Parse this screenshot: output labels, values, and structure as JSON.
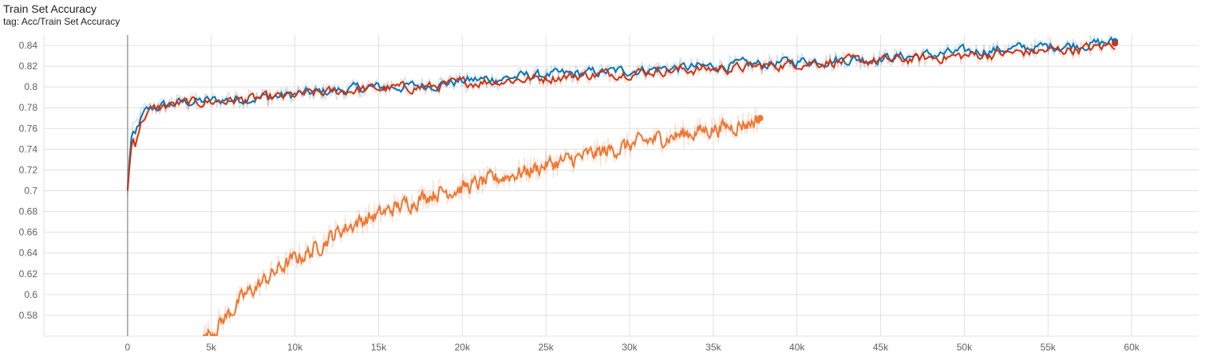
{
  "header": {
    "title": "Train Set Accuracy",
    "tag": "tag: Acc/Train Set Accuracy"
  },
  "colors": {
    "blue": "#0077bb",
    "red": "#cc3311",
    "orange": "#ee7733",
    "grid": "#e0e0e0",
    "axis": "#9e9e9e"
  },
  "chart_data": {
    "type": "line",
    "title": "Train Set Accuracy",
    "xlabel": "",
    "ylabel": "",
    "xlim": [
      -5000,
      64000
    ],
    "ylim": [
      0.56,
      0.85
    ],
    "x_ticks": [
      0,
      5000,
      10000,
      15000,
      20000,
      25000,
      30000,
      35000,
      40000,
      45000,
      50000,
      55000,
      60000
    ],
    "x_tick_labels": [
      "0",
      "5k",
      "10k",
      "15k",
      "20k",
      "25k",
      "30k",
      "35k",
      "40k",
      "45k",
      "50k",
      "55k",
      "60k"
    ],
    "y_ticks": [
      0.58,
      0.6,
      0.62,
      0.64,
      0.66,
      0.68,
      0.7,
      0.72,
      0.74,
      0.76,
      0.78,
      0.8,
      0.82,
      0.84
    ],
    "y_tick_labels": [
      "0.58",
      "0.6",
      "0.62",
      "0.64",
      "0.66",
      "0.68",
      "0.7",
      "0.72",
      "0.74",
      "0.76",
      "0.78",
      "0.8",
      "0.82",
      "0.84"
    ],
    "grid": true,
    "legend": "none",
    "series": [
      {
        "color": "#0077bb",
        "x": [
          0,
          200,
          500,
          1000,
          2000,
          3000,
          4000,
          5000,
          7000,
          9000,
          10000,
          12000,
          14000,
          16000,
          18000,
          20000,
          22000,
          24000,
          26000,
          28000,
          30000,
          32000,
          34000,
          36000,
          38000,
          40000,
          42000,
          44000,
          46000,
          48000,
          50000,
          52000,
          54000,
          56000,
          58000,
          59000
        ],
        "values": [
          0.7,
          0.75,
          0.765,
          0.778,
          0.782,
          0.785,
          0.786,
          0.787,
          0.789,
          0.791,
          0.793,
          0.796,
          0.799,
          0.8,
          0.802,
          0.806,
          0.808,
          0.811,
          0.812,
          0.814,
          0.816,
          0.818,
          0.819,
          0.821,
          0.822,
          0.825,
          0.826,
          0.827,
          0.829,
          0.831,
          0.834,
          0.836,
          0.838,
          0.84,
          0.842,
          0.844
        ]
      },
      {
        "color": "#cc3311",
        "x": [
          0,
          200,
          500,
          1000,
          2000,
          3000,
          4000,
          5000,
          7000,
          9000,
          10000,
          12000,
          14000,
          16000,
          18000,
          20000,
          22000,
          24000,
          26000,
          28000,
          30000,
          32000,
          34000,
          36000,
          38000,
          40000,
          42000,
          44000,
          46000,
          48000,
          50000,
          52000,
          54000,
          56000,
          58000,
          59000
        ],
        "values": [
          0.7,
          0.74,
          0.762,
          0.776,
          0.781,
          0.784,
          0.785,
          0.786,
          0.788,
          0.79,
          0.792,
          0.795,
          0.798,
          0.799,
          0.8,
          0.804,
          0.806,
          0.808,
          0.81,
          0.812,
          0.814,
          0.816,
          0.817,
          0.818,
          0.82,
          0.823,
          0.824,
          0.825,
          0.826,
          0.828,
          0.83,
          0.832,
          0.834,
          0.836,
          0.838,
          0.842
        ]
      },
      {
        "color": "#ee7733",
        "x": [
          4500,
          5000,
          6000,
          7000,
          8000,
          9000,
          10000,
          11000,
          12000,
          13000,
          14000,
          15000,
          16000,
          17000,
          18000,
          19000,
          20000,
          21000,
          22000,
          23000,
          24000,
          25000,
          26000,
          27000,
          28000,
          29000,
          30000,
          31000,
          32000,
          33000,
          34000,
          35000,
          36000,
          37000,
          37800
        ],
        "values": [
          0.56,
          0.565,
          0.582,
          0.6,
          0.612,
          0.625,
          0.635,
          0.642,
          0.655,
          0.665,
          0.672,
          0.677,
          0.684,
          0.69,
          0.697,
          0.7,
          0.703,
          0.707,
          0.712,
          0.716,
          0.72,
          0.725,
          0.728,
          0.732,
          0.736,
          0.74,
          0.744,
          0.748,
          0.751,
          0.754,
          0.757,
          0.76,
          0.762,
          0.765,
          0.77
        ]
      }
    ]
  }
}
